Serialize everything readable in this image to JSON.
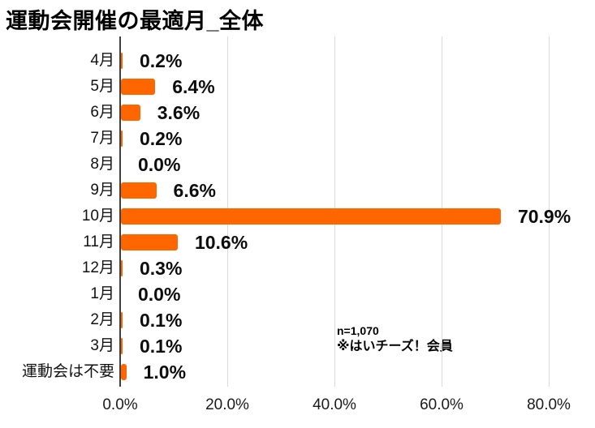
{
  "chart_data": {
    "type": "bar",
    "orientation": "horizontal",
    "title": "運動会開催の最適月_全体",
    "categories": [
      "4月",
      "5月",
      "6月",
      "7月",
      "8月",
      "9月",
      "10月",
      "11月",
      "12月",
      "1月",
      "2月",
      "3月",
      "運動会は不要"
    ],
    "values": [
      0.2,
      6.4,
      3.6,
      0.2,
      0.0,
      6.6,
      70.9,
      10.6,
      0.3,
      0.0,
      0.1,
      0.1,
      1.0
    ],
    "value_labels": [
      "0.2%",
      "6.4%",
      "3.6%",
      "0.2%",
      "0.0%",
      "6.6%",
      "70.9%",
      "10.6%",
      "0.3%",
      "0.0%",
      "0.1%",
      "0.1%",
      "1.0%"
    ],
    "x_ticks": [
      "0.0%",
      "20.0%",
      "40.0%",
      "60.0%",
      "80.0%"
    ],
    "x_tick_values": [
      0,
      20,
      40,
      60,
      80
    ],
    "xlim": [
      0,
      88
    ],
    "grid": true,
    "legend": "none",
    "bar_color": "#FF6600",
    "axis_color": "#404040",
    "gridline_color": "#d9d9d9",
    "annotations": [
      "n=1,070",
      "※はいチーズ！会員"
    ]
  }
}
